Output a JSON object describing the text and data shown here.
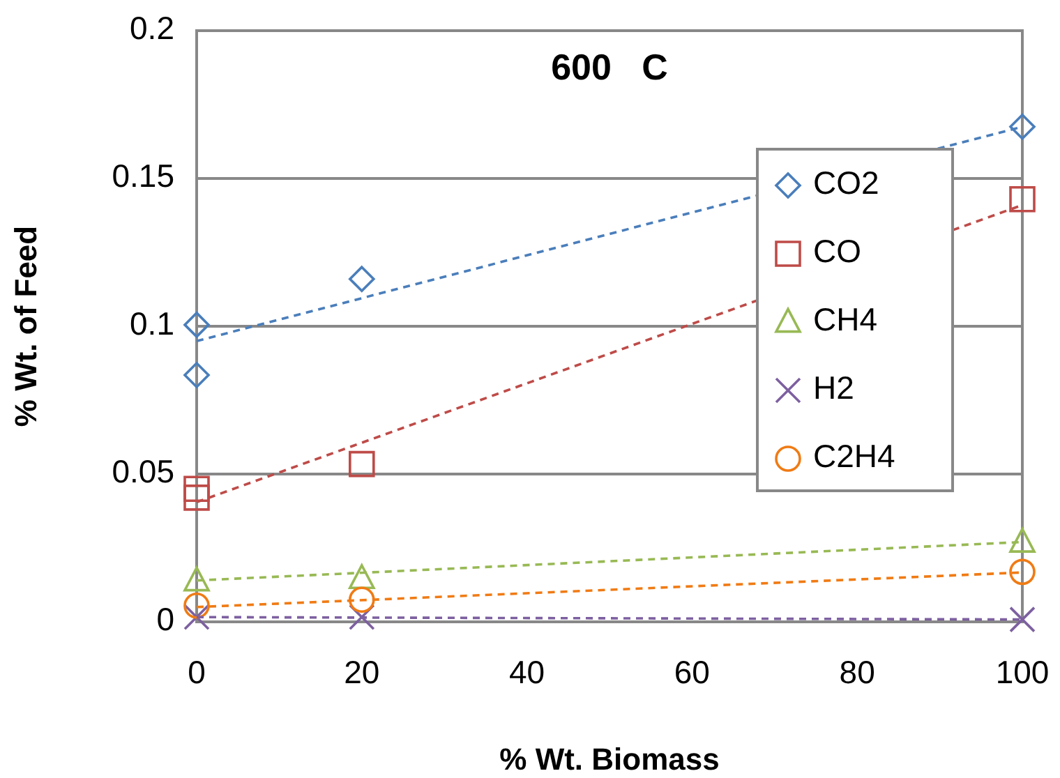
{
  "chart_data": {
    "type": "scatter",
    "title": "600   C",
    "xlabel": "% Wt. Biomass",
    "ylabel": "% Wt. of Feed",
    "xlim": [
      0,
      100
    ],
    "xticks": [
      0,
      20,
      40,
      60,
      80,
      100
    ],
    "ylim": [
      0,
      0.2
    ],
    "yticks": [
      0,
      0.05,
      0.1,
      0.15,
      0.2
    ],
    "grid": "y",
    "legend": "right",
    "series": [
      {
        "name": "CO2",
        "marker": "diamond",
        "color": "#4a7ebb",
        "x": [
          0,
          0,
          20,
          100
        ],
        "values": [
          0.1005,
          0.0835,
          0.116,
          0.1675
        ]
      },
      {
        "name": "CO",
        "marker": "square",
        "color": "#be4b48",
        "x": [
          0,
          0,
          20,
          100
        ],
        "values": [
          0.045,
          0.042,
          0.0534,
          0.143
        ]
      },
      {
        "name": "CH4",
        "marker": "triangle",
        "color": "#98b954",
        "x": [
          0,
          20,
          100
        ],
        "values": [
          0.0139,
          0.0147,
          0.027
        ]
      },
      {
        "name": "H2",
        "marker": "cross",
        "color": "#7d60a0",
        "x": [
          0,
          20,
          100
        ],
        "values": [
          0.0016,
          0.0016,
          0.0008
        ]
      },
      {
        "name": "C2H4",
        "marker": "circle",
        "color": "#f07b14",
        "x": [
          0,
          20,
          100
        ],
        "values": [
          0.0055,
          0.0075,
          0.0169
        ]
      },
      {
        "type": "line",
        "line_style": "dashed",
        "marker": "none",
        "color": "#4a7ebb",
        "x": [
          0,
          100
        ],
        "values": [
          0.095,
          0.1675
        ]
      },
      {
        "type": "line",
        "line_style": "dashed",
        "marker": "none",
        "color": "#be4b48",
        "x": [
          0,
          100
        ],
        "values": [
          0.0405,
          0.141
        ]
      },
      {
        "type": "line",
        "line_style": "dashed",
        "marker": "none",
        "color": "#98b954",
        "x": [
          0,
          100
        ],
        "values": [
          0.014,
          0.027
        ]
      },
      {
        "type": "line",
        "line_style": "dashed",
        "marker": "none",
        "color": "#7d60a0",
        "x": [
          0,
          100
        ],
        "values": [
          0.0016,
          0.0008
        ]
      },
      {
        "type": "line",
        "line_style": "dashed",
        "marker": "none",
        "color": "#f07b14",
        "x": [
          0,
          100
        ],
        "values": [
          0.005,
          0.0167
        ]
      }
    ]
  }
}
